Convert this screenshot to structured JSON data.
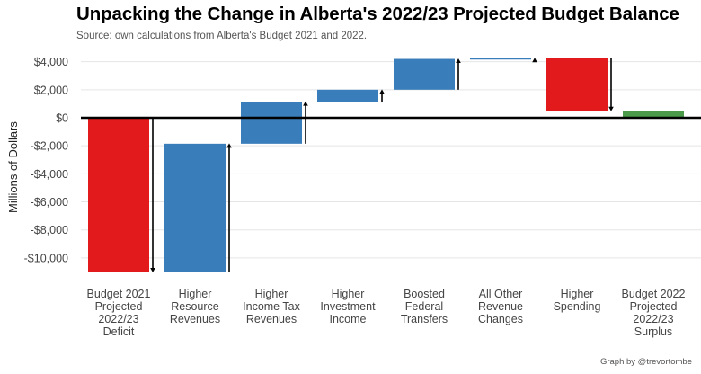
{
  "title": "Unpacking the Change in Alberta's 2022/23 Projected Budget Balance",
  "subtitle": "Source: own calculations from Alberta's Budget 2021 and 2022.",
  "credit": "Graph by @trevortombe",
  "colors": {
    "deficit": "#e31a1c",
    "increase": "#3a7dbb",
    "decrease": "#e31a1c",
    "surplus": "#4a9a4a",
    "zero_line": "#000000",
    "grid": "#e5e5e5"
  },
  "chart_data": {
    "type": "bar",
    "subtype": "waterfall",
    "ylabel": "Millions of Dollars",
    "ylim": [
      -11500,
      4700
    ],
    "yticks": [
      4000,
      2000,
      0,
      -2000,
      -4000,
      -6000,
      -8000,
      -10000
    ],
    "ytick_labels": [
      "$4,000",
      "$2,000",
      "$0",
      "-$2,000",
      "-$4,000",
      "-$6,000",
      "-$8,000",
      "-$10,000"
    ],
    "grid": true,
    "categories": [
      [
        "Budget 2021",
        "Projected",
        "2022/23",
        "Deficit"
      ],
      [
        "Higher",
        "Resource",
        "Revenues"
      ],
      [
        "Higher",
        "Income Tax",
        "Revenues"
      ],
      [
        "Higher",
        "Investment",
        "Income"
      ],
      [
        "Boosted",
        "Federal",
        "Transfers"
      ],
      [
        "All Other",
        "Revenue",
        "Changes"
      ],
      [
        "Higher",
        "Spending"
      ],
      [
        "Budget 2022",
        "Projected",
        "2022/23",
        "Surplus"
      ]
    ],
    "bars": [
      {
        "start": 0,
        "end": -11000,
        "kind": "deficit"
      },
      {
        "start": -11000,
        "end": -1850,
        "kind": "increase"
      },
      {
        "start": -1850,
        "end": 1150,
        "kind": "increase"
      },
      {
        "start": 1150,
        "end": 2000,
        "kind": "increase"
      },
      {
        "start": 2000,
        "end": 4200,
        "kind": "increase"
      },
      {
        "start": 4200,
        "end": 4250,
        "kind": "increase"
      },
      {
        "start": 4250,
        "end": 500,
        "kind": "decrease"
      },
      {
        "start": 0,
        "end": 500,
        "kind": "surplus"
      }
    ]
  }
}
